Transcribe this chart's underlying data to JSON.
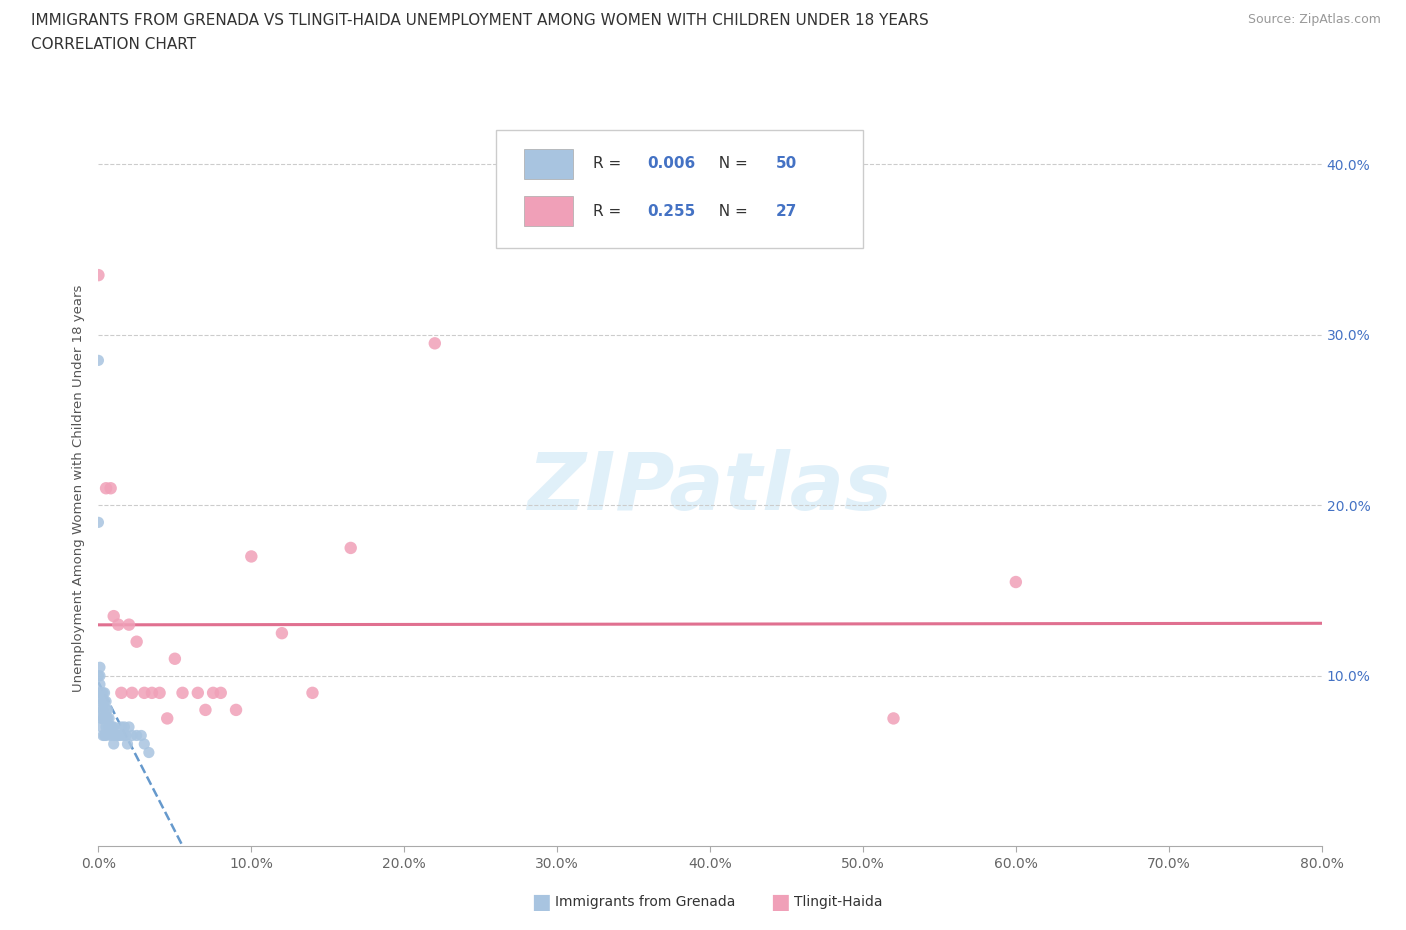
{
  "title_line1": "IMMIGRANTS FROM GRENADA VS TLINGIT-HAIDA UNEMPLOYMENT AMONG WOMEN WITH CHILDREN UNDER 18 YEARS",
  "title_line2": "CORRELATION CHART",
  "source": "Source: ZipAtlas.com",
  "ylabel": "Unemployment Among Women with Children Under 18 years",
  "xlim": [
    0.0,
    0.8
  ],
  "ylim": [
    0.0,
    0.42
  ],
  "yticks": [
    0.0,
    0.1,
    0.2,
    0.3,
    0.4
  ],
  "xticks": [
    0.0,
    0.1,
    0.2,
    0.3,
    0.4,
    0.5,
    0.6,
    0.7,
    0.8
  ],
  "legend_R1": "0.006",
  "legend_N1": "50",
  "legend_R2": "0.255",
  "legend_N2": "27",
  "color_blue": "#a8c4e0",
  "color_pink": "#f0a0b8",
  "color_blue_text": "#4472c4",
  "trend_blue_color": "#6699cc",
  "trend_pink_color": "#e07090",
  "background": "#ffffff",
  "watermark": "ZIPatlas",
  "grenada_x": [
    0.0,
    0.0,
    0.0,
    0.001,
    0.001,
    0.001,
    0.001,
    0.002,
    0.002,
    0.002,
    0.002,
    0.002,
    0.003,
    0.003,
    0.003,
    0.003,
    0.003,
    0.004,
    0.004,
    0.004,
    0.004,
    0.005,
    0.005,
    0.005,
    0.005,
    0.005,
    0.006,
    0.006,
    0.007,
    0.007,
    0.008,
    0.008,
    0.009,
    0.01,
    0.01,
    0.01,
    0.012,
    0.013,
    0.014,
    0.015,
    0.016,
    0.017,
    0.018,
    0.019,
    0.02,
    0.022,
    0.025,
    0.028,
    0.03,
    0.033
  ],
  "grenada_y": [
    0.285,
    0.19,
    0.1,
    0.105,
    0.1,
    0.095,
    0.09,
    0.09,
    0.085,
    0.08,
    0.075,
    0.07,
    0.09,
    0.085,
    0.08,
    0.075,
    0.065,
    0.09,
    0.085,
    0.075,
    0.065,
    0.085,
    0.08,
    0.075,
    0.07,
    0.065,
    0.08,
    0.075,
    0.075,
    0.07,
    0.07,
    0.065,
    0.07,
    0.07,
    0.065,
    0.06,
    0.065,
    0.065,
    0.065,
    0.07,
    0.065,
    0.07,
    0.065,
    0.06,
    0.07,
    0.065,
    0.065,
    0.065,
    0.06,
    0.055
  ],
  "tlingit_x": [
    0.0,
    0.005,
    0.008,
    0.01,
    0.013,
    0.015,
    0.02,
    0.022,
    0.025,
    0.03,
    0.035,
    0.04,
    0.045,
    0.05,
    0.055,
    0.065,
    0.07,
    0.075,
    0.08,
    0.09,
    0.1,
    0.12,
    0.14,
    0.165,
    0.22,
    0.52,
    0.6
  ],
  "tlingit_y": [
    0.335,
    0.21,
    0.21,
    0.135,
    0.13,
    0.09,
    0.13,
    0.09,
    0.12,
    0.09,
    0.09,
    0.09,
    0.075,
    0.11,
    0.09,
    0.09,
    0.08,
    0.09,
    0.09,
    0.08,
    0.17,
    0.125,
    0.09,
    0.175,
    0.295,
    0.075,
    0.155
  ]
}
